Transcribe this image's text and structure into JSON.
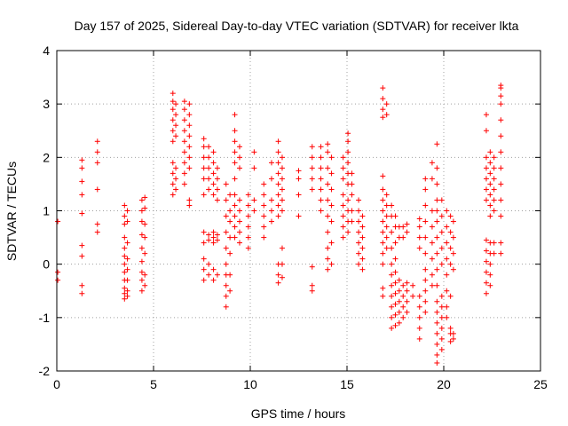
{
  "chart_data": {
    "type": "scatter",
    "title": "Day 157 of 2025, Sidereal Day-to-day VTEC variation (SDTVAR) for receiver lkta",
    "xlabel": "GPS time / hours",
    "ylabel": "SDTVAR / TECUs",
    "xlim": [
      0,
      25
    ],
    "ylim": [
      -2,
      4
    ],
    "xticks": [
      0,
      5,
      10,
      15,
      20,
      25
    ],
    "yticks": [
      -2,
      -1,
      0,
      1,
      2,
      3,
      4
    ],
    "grid": true,
    "marker": "+",
    "marker_color": "#ff0000",
    "series": [
      {
        "name": "SDTVAR",
        "clusters": [
          {
            "x": 0.05,
            "y": [
              -0.3,
              -0.15,
              0.8
            ]
          },
          {
            "x": 1.3,
            "y": [
              -0.55,
              -0.4,
              0.15,
              0.35,
              0.95,
              1.3,
              1.55,
              1.8,
              1.95
            ]
          },
          {
            "x": 2.1,
            "y": [
              0.6,
              0.75,
              1.4,
              1.9,
              2.1,
              2.3
            ]
          },
          {
            "x": 3.5,
            "y": [
              -0.65,
              -0.55,
              -0.45,
              -0.3,
              -0.15,
              0.0,
              0.15,
              0.3,
              0.5,
              0.75,
              0.9,
              1.1
            ]
          },
          {
            "x": 3.65,
            "y": [
              -0.6,
              -0.5,
              -0.3,
              -0.1,
              0.1,
              0.4,
              0.8,
              1.0
            ]
          },
          {
            "x": 4.4,
            "y": [
              -0.5,
              -0.3,
              -0.15,
              0.05,
              0.3,
              0.55,
              0.8,
              1.0,
              1.2
            ]
          },
          {
            "x": 4.55,
            "y": [
              -0.4,
              -0.2,
              0.2,
              0.5,
              0.75,
              1.05,
              1.25
            ]
          },
          {
            "x": 6.0,
            "y": [
              1.3,
              1.5,
              1.7,
              1.9,
              2.3,
              2.5,
              2.7,
              2.9,
              3.05,
              3.2
            ]
          },
          {
            "x": 6.15,
            "y": [
              1.4,
              1.6,
              1.8,
              2.4,
              2.6,
              2.8,
              3.0
            ]
          },
          {
            "x": 6.6,
            "y": [
              1.5,
              1.7,
              1.9,
              2.1,
              2.3,
              2.5,
              2.7,
              2.9,
              3.05
            ]
          },
          {
            "x": 6.85,
            "y": [
              1.1,
              1.2,
              1.8,
              2.0,
              2.2,
              2.4,
              2.6,
              2.8,
              3.0
            ]
          },
          {
            "x": 7.6,
            "y": [
              -0.3,
              -0.1,
              0.1,
              0.4,
              0.6,
              1.3,
              1.6,
              1.8,
              2.0,
              2.2,
              2.35
            ]
          },
          {
            "x": 7.85,
            "y": [
              -0.2,
              0.0,
              0.45,
              0.55,
              1.4,
              1.6,
              1.8,
              2.0,
              2.2
            ]
          },
          {
            "x": 8.1,
            "y": [
              -0.3,
              -0.1,
              0.4,
              0.5,
              0.6,
              1.3,
              1.5,
              1.7,
              1.9,
              2.1
            ]
          },
          {
            "x": 8.3,
            "y": [
              -0.2,
              0.45,
              0.55,
              1.2,
              1.4,
              1.6,
              1.8
            ]
          },
          {
            "x": 8.75,
            "y": [
              -0.8,
              -0.6,
              -0.4,
              -0.2,
              0.0,
              0.3,
              0.6,
              0.9,
              1.2,
              1.5
            ]
          },
          {
            "x": 8.95,
            "y": [
              -0.5,
              -0.2,
              0.2,
              0.5,
              0.8,
              1.0,
              1.3
            ]
          },
          {
            "x": 9.2,
            "y": [
              0.5,
              0.7,
              0.9,
              1.1,
              1.3,
              1.6,
              1.9,
              2.1,
              2.3,
              2.5,
              2.8
            ]
          },
          {
            "x": 9.45,
            "y": [
              0.4,
              0.6,
              0.8,
              1.0,
              1.2,
              1.8,
              2.0,
              2.2
            ]
          },
          {
            "x": 9.9,
            "y": [
              0.3,
              0.5,
              0.7,
              0.9,
              1.1,
              1.3
            ]
          },
          {
            "x": 10.2,
            "y": [
              1.8,
              2.1,
              1.0,
              1.2
            ]
          },
          {
            "x": 10.7,
            "y": [
              0.5,
              0.7,
              0.9,
              1.1,
              1.3,
              1.5
            ]
          },
          {
            "x": 11.1,
            "y": [
              0.8,
              1.0,
              1.2,
              1.6,
              1.9
            ]
          },
          {
            "x": 11.45,
            "y": [
              -0.35,
              -0.2,
              0.0,
              0.9,
              1.1,
              1.3,
              1.5,
              1.7,
              1.9,
              2.1,
              2.3
            ]
          },
          {
            "x": 11.65,
            "y": [
              -0.25,
              0.0,
              0.3,
              1.0,
              1.2,
              1.4,
              1.6,
              1.8,
              2.0
            ]
          },
          {
            "x": 12.5,
            "y": [
              0.9,
              1.3,
              1.6,
              1.75
            ]
          },
          {
            "x": 13.2,
            "y": [
              -0.5,
              -0.4,
              -0.05,
              1.4,
              1.6,
              1.8,
              2.0,
              2.2
            ]
          },
          {
            "x": 13.65,
            "y": [
              1.0,
              1.2,
              1.4,
              1.6,
              1.8,
              2.0,
              2.2
            ]
          },
          {
            "x": 14.0,
            "y": [
              -0.1,
              0.1,
              0.3,
              0.6,
              0.9,
              1.2,
              1.5,
              1.8,
              2.1,
              2.25
            ]
          },
          {
            "x": 14.2,
            "y": [
              0.0,
              0.4,
              0.8,
              1.1,
              1.4,
              1.7,
              2.0
            ]
          },
          {
            "x": 14.8,
            "y": [
              0.5,
              0.7,
              0.9,
              1.1,
              1.3,
              1.6,
              1.8,
              2.0
            ]
          },
          {
            "x": 15.05,
            "y": [
              0.6,
              0.8,
              1.0,
              1.2,
              1.5,
              1.7,
              1.9,
              2.1,
              2.3,
              2.45
            ]
          },
          {
            "x": 15.25,
            "y": [
              0.8,
              1.0,
              1.3,
              1.5,
              1.7
            ]
          },
          {
            "x": 15.6,
            "y": [
              0.0,
              0.2,
              0.4,
              0.6,
              0.8,
              1.0,
              1.2
            ]
          },
          {
            "x": 15.8,
            "y": [
              -0.1,
              0.1,
              0.3,
              0.5,
              0.7,
              0.9
            ]
          },
          {
            "x": 16.85,
            "y": [
              -0.6,
              -0.45,
              0.0,
              0.2,
              0.4,
              0.6,
              0.8,
              1.0,
              1.2,
              1.4,
              1.65,
              2.75,
              2.9,
              3.1,
              3.3
            ]
          },
          {
            "x": 17.05,
            "y": [
              0.3,
              0.5,
              0.7,
              0.9,
              1.1,
              1.3,
              2.8,
              3.0
            ]
          },
          {
            "x": 17.3,
            "y": [
              -1.2,
              -1.0,
              -0.8,
              -0.6,
              -0.4,
              -0.2,
              0.0,
              0.3,
              0.6,
              0.9,
              1.1
            ]
          },
          {
            "x": 17.5,
            "y": [
              -1.15,
              -0.95,
              -0.75,
              -0.55,
              -0.35,
              -0.15,
              0.1,
              0.4,
              0.7,
              0.9
            ]
          },
          {
            "x": 17.7,
            "y": [
              -1.1,
              -0.9,
              -0.7,
              -0.5,
              -0.3,
              0.5,
              0.7
            ]
          },
          {
            "x": 17.9,
            "y": [
              -1.0,
              -0.8,
              -0.6,
              -0.4,
              0.5,
              0.7
            ]
          },
          {
            "x": 18.1,
            "y": [
              -0.9,
              -0.7,
              -0.5,
              -0.35,
              0.6,
              0.75
            ]
          },
          {
            "x": 18.4,
            "y": [
              -0.6,
              -0.4
            ]
          },
          {
            "x": 18.75,
            "y": [
              -1.4,
              -1.2,
              -1.0,
              -0.8,
              -0.6,
              0.3,
              0.5,
              0.7,
              0.85
            ]
          },
          {
            "x": 19.05,
            "y": [
              -0.9,
              -0.7,
              -0.5,
              -0.3,
              -0.1,
              0.2,
              0.5,
              0.8,
              1.1,
              1.4,
              1.6
            ]
          },
          {
            "x": 19.4,
            "y": [
              -0.4,
              -0.2,
              0.1,
              0.4,
              0.7,
              1.0,
              1.6,
              1.9
            ]
          },
          {
            "x": 19.65,
            "y": [
              -1.85,
              -1.7,
              -1.5,
              -1.3,
              -1.1,
              -0.9,
              -0.7,
              -0.4,
              -0.1,
              0.2,
              0.5,
              0.8,
              1.0,
              1.2,
              1.5,
              1.8,
              2.25
            ]
          },
          {
            "x": 19.9,
            "y": [
              -1.6,
              -1.4,
              -1.2,
              -1.0,
              -0.8,
              -0.6,
              0.0,
              0.3,
              0.6,
              0.9,
              1.2
            ]
          },
          {
            "x": 20.15,
            "y": [
              -1.0,
              -0.8,
              -0.5,
              -0.2,
              0.1,
              0.4,
              0.7,
              1.0
            ]
          },
          {
            "x": 20.35,
            "y": [
              -1.45,
              -1.3,
              -1.2,
              -0.6,
              0.0,
              0.3,
              0.6,
              0.9
            ]
          },
          {
            "x": 20.5,
            "y": [
              -1.4,
              -1.3,
              -0.1,
              0.2,
              0.5,
              0.8
            ]
          },
          {
            "x": 22.2,
            "y": [
              -0.55,
              -0.35,
              -0.15,
              0.05,
              0.25,
              0.45,
              1.2,
              1.4,
              1.6,
              1.8,
              2.0,
              2.5,
              2.8
            ]
          },
          {
            "x": 22.4,
            "y": [
              -0.4,
              -0.2,
              0.0,
              0.2,
              0.4,
              0.9,
              1.1,
              1.3,
              1.5,
              1.7,
              1.9,
              2.1
            ]
          },
          {
            "x": 22.6,
            "y": [
              0.2,
              0.4,
              1.0,
              1.2,
              1.4,
              1.6,
              1.8,
              2.0
            ]
          },
          {
            "x": 22.95,
            "y": [
              0.2,
              0.4,
              0.9,
              1.2,
              1.5,
              1.8,
              2.1,
              2.4,
              2.7,
              3.0,
              3.15,
              3.3,
              3.35
            ]
          }
        ]
      }
    ]
  }
}
